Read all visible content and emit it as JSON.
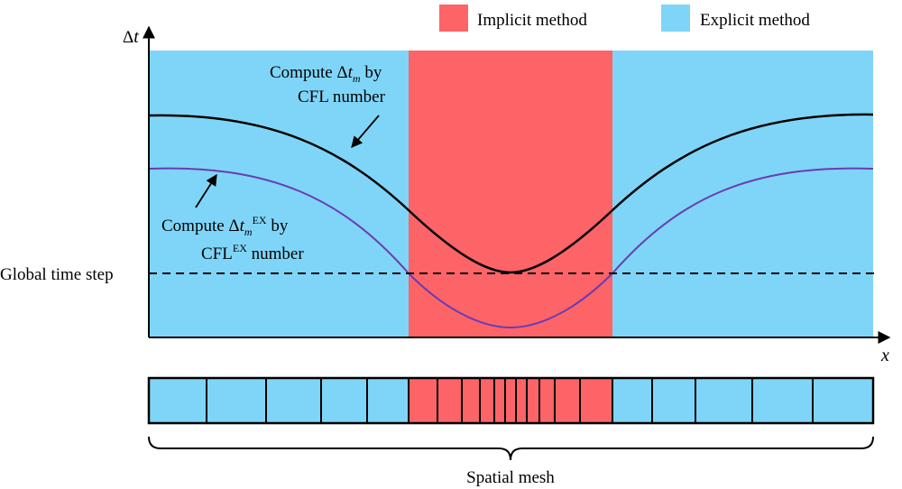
{
  "legend": {
    "implicit_label": "Implicit method",
    "explicit_label": "Explicit method"
  },
  "axes": {
    "delta_symbol": "Δ",
    "y_letter": "t",
    "x_letter": "x"
  },
  "annotations": {
    "dtm_line1_prefix": "Compute ",
    "dtm_delta": "Δ",
    "dtm_var": "t",
    "dtm_sub": "m",
    "dtm_suffix": " by",
    "dtm_line2": "CFL number",
    "dtex_line1_prefix": "Compute ",
    "dtex_delta": "Δ",
    "dtex_var": "t",
    "dtex_sub": "m",
    "dtex_sup": "EX",
    "dtex_suffix": " by",
    "dtex_line2_cfl": "CFL",
    "dtex_line2_sup": "EX",
    "dtex_line2_suffix": "  number",
    "global_time_step": "Global time step",
    "spatial_mesh": "Spatial mesh"
  },
  "colors": {
    "implicit": "#fd6467",
    "explicit": "#7fd5f7",
    "dt_curve": "#000000",
    "dt_ex_curve": "#6a3bb5"
  }
}
